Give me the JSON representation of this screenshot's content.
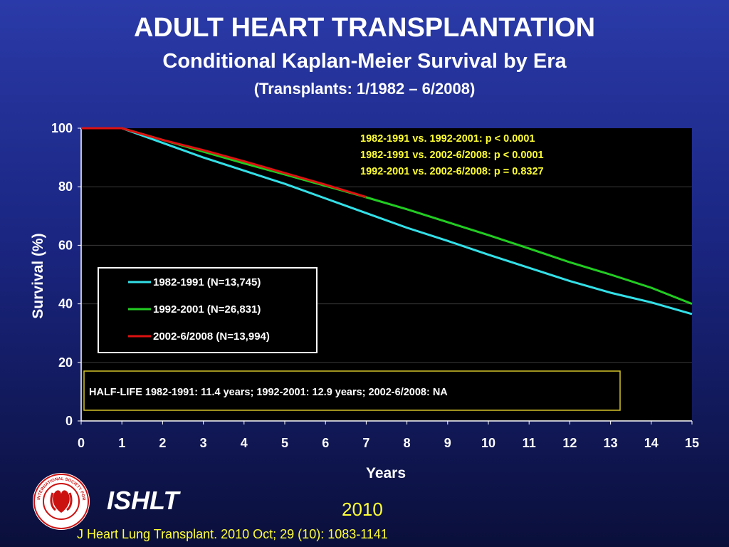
{
  "title": "ADULT HEART TRANSPLANTATION",
  "subtitle": "Conditional Kaplan-Meier Survival by Era",
  "subtitle2": "(Transplants: 1/1982 – 6/2008)",
  "chart_data": {
    "type": "line",
    "xlabel": "Years",
    "ylabel": "Survival (%)",
    "xlim": [
      0,
      15
    ],
    "ylim": [
      0,
      100
    ],
    "xticks": [
      0,
      1,
      2,
      3,
      4,
      5,
      6,
      7,
      8,
      9,
      10,
      11,
      12,
      13,
      14,
      15
    ],
    "yticks": [
      0,
      20,
      40,
      60,
      80,
      100
    ],
    "grid": "horizontal",
    "legend_position": "left-middle",
    "series": [
      {
        "name": "1982-1991 (N=13,745)",
        "color": "#33e0e8",
        "x": [
          0,
          1,
          2,
          3,
          4,
          5,
          6,
          7,
          8,
          9,
          10,
          11,
          12,
          13,
          14,
          15
        ],
        "y": [
          100,
          100,
          95,
          90,
          85.5,
          81,
          76,
          71,
          66,
          61.5,
          56.8,
          52.3,
          47.8,
          43.8,
          40.5,
          36.5
        ]
      },
      {
        "name": "1992-2001 (N=26,831)",
        "color": "#22cc22",
        "x": [
          0,
          1,
          2,
          3,
          4,
          5,
          6,
          7,
          8,
          9,
          10,
          11,
          12,
          13,
          14,
          15
        ],
        "y": [
          100,
          100,
          96,
          92,
          88,
          84.2,
          80.3,
          76.4,
          72.3,
          67.9,
          63.5,
          58.9,
          54.2,
          50,
          45.5,
          40
        ]
      },
      {
        "name": "2002-6/2008 (N=13,994)",
        "color": "#dd1111",
        "x": [
          0,
          1,
          2,
          3,
          4,
          5,
          6,
          7
        ],
        "y": [
          100,
          100,
          96,
          92.5,
          88.7,
          84.7,
          80.7,
          76.5
        ]
      }
    ],
    "annotations": [
      "1982-1991 vs. 1992-2001: p < 0.0001",
      "1982-1991 vs. 2002-6/2008: p < 0.0001",
      "1992-2001 vs. 2002-6/2008: p = 0.8327"
    ],
    "halflife_note": "HALF-LIFE 1982-1991: 11.4 years; 1992-2001:  12.9 years; 2002-6/2008: NA"
  },
  "footer": {
    "org": "ISHLT",
    "year": "2010",
    "citation": "J Heart Lung Transplant. 2010 Oct; 29 (10): 1083-1141",
    "logo_text": "INTERNATIONAL SOCIETY FOR HEART & LUNG TRANSPLANTATION"
  },
  "colors": {
    "annotation": "#ffff33",
    "plot_bg": "#000000",
    "text": "#ffffff"
  }
}
